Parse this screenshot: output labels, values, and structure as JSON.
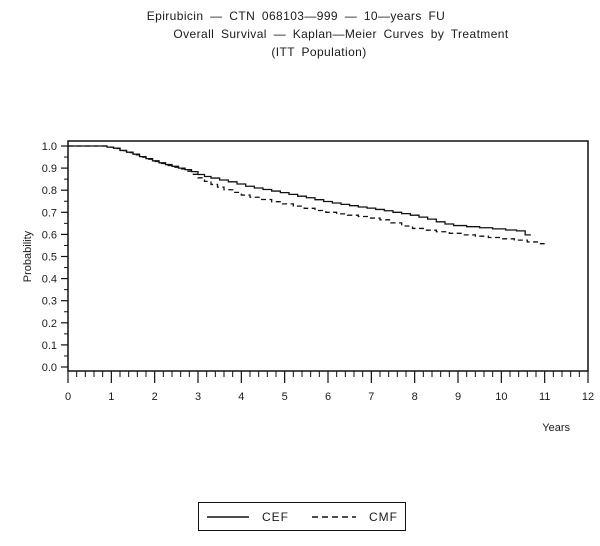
{
  "titles": {
    "line1": "Epirubicin — CTN 068103—999 — 10—years FU",
    "line2": "Overall Survival — Kaplan—Meier Curves by Treatment",
    "line3": "(ITT Population)"
  },
  "colors": {
    "background": "#ffffff",
    "line": "#111111",
    "text": "#1a1a1a"
  },
  "chart_data": {
    "type": "line",
    "subtype": "kaplan-meier-step",
    "title": "Overall Survival — Kaplan—Meier Curves by Treatment (ITT Population)",
    "xlabel": "Years",
    "ylabel": "Probability",
    "xlim": [
      0,
      12
    ],
    "ylim": [
      0.0,
      1.0
    ],
    "x_ticks": [
      0,
      1,
      2,
      3,
      4,
      5,
      6,
      7,
      8,
      9,
      10,
      11,
      12
    ],
    "y_ticks": [
      1.0,
      0.9,
      0.8,
      0.7,
      0.6,
      0.5,
      0.4,
      0.3,
      0.2,
      0.1,
      0.0
    ],
    "x_minor_interval": 0.2,
    "y_minor_interval": 0.05,
    "grid": false,
    "frame": true,
    "legend_position": "bottom-center",
    "series": [
      {
        "name": "CEF",
        "line_style": "solid",
        "color": "#111111",
        "end_x": 10.68,
        "points": [
          [
            0,
            1.0
          ],
          [
            0.9,
            0.995
          ],
          [
            1.05,
            0.99
          ],
          [
            1.2,
            0.98
          ],
          [
            1.35,
            0.972
          ],
          [
            1.5,
            0.963
          ],
          [
            1.65,
            0.952
          ],
          [
            1.8,
            0.943
          ],
          [
            1.95,
            0.933
          ],
          [
            2.1,
            0.924
          ],
          [
            2.25,
            0.916
          ],
          [
            2.4,
            0.908
          ],
          [
            2.55,
            0.9
          ],
          [
            2.7,
            0.893
          ],
          [
            2.85,
            0.884
          ],
          [
            3.0,
            0.871
          ],
          [
            3.15,
            0.862
          ],
          [
            3.3,
            0.855
          ],
          [
            3.5,
            0.846
          ],
          [
            3.7,
            0.838
          ],
          [
            3.9,
            0.828
          ],
          [
            4.1,
            0.818
          ],
          [
            4.3,
            0.81
          ],
          [
            4.5,
            0.803
          ],
          [
            4.7,
            0.796
          ],
          [
            4.9,
            0.789
          ],
          [
            5.1,
            0.781
          ],
          [
            5.3,
            0.773
          ],
          [
            5.5,
            0.766
          ],
          [
            5.7,
            0.757
          ],
          [
            5.9,
            0.749
          ],
          [
            6.1,
            0.742
          ],
          [
            6.3,
            0.736
          ],
          [
            6.5,
            0.73
          ],
          [
            6.7,
            0.724
          ],
          [
            6.9,
            0.719
          ],
          [
            7.1,
            0.713
          ],
          [
            7.3,
            0.707
          ],
          [
            7.5,
            0.7
          ],
          [
            7.7,
            0.694
          ],
          [
            7.9,
            0.687
          ],
          [
            8.1,
            0.678
          ],
          [
            8.3,
            0.669
          ],
          [
            8.5,
            0.657
          ],
          [
            8.7,
            0.647
          ],
          [
            8.9,
            0.64
          ],
          [
            9.2,
            0.635
          ],
          [
            9.5,
            0.63
          ],
          [
            9.8,
            0.625
          ],
          [
            10.1,
            0.62
          ],
          [
            10.35,
            0.616
          ],
          [
            10.55,
            0.598
          ]
        ]
      },
      {
        "name": "CMF",
        "line_style": "dashed",
        "color": "#111111",
        "end_x": 11.0,
        "points": [
          [
            0,
            1.0
          ],
          [
            0.9,
            0.995
          ],
          [
            1.05,
            0.989
          ],
          [
            1.2,
            0.979
          ],
          [
            1.35,
            0.97
          ],
          [
            1.5,
            0.96
          ],
          [
            1.65,
            0.95
          ],
          [
            1.8,
            0.94
          ],
          [
            1.95,
            0.93
          ],
          [
            2.1,
            0.921
          ],
          [
            2.25,
            0.912
          ],
          [
            2.4,
            0.904
          ],
          [
            2.55,
            0.896
          ],
          [
            2.7,
            0.886
          ],
          [
            2.85,
            0.872
          ],
          [
            3.0,
            0.856
          ],
          [
            3.15,
            0.84
          ],
          [
            3.3,
            0.826
          ],
          [
            3.45,
            0.814
          ],
          [
            3.6,
            0.802
          ],
          [
            3.8,
            0.79
          ],
          [
            4.0,
            0.778
          ],
          [
            4.2,
            0.768
          ],
          [
            4.45,
            0.758
          ],
          [
            4.7,
            0.748
          ],
          [
            4.95,
            0.738
          ],
          [
            5.2,
            0.728
          ],
          [
            5.45,
            0.718
          ],
          [
            5.7,
            0.708
          ],
          [
            5.95,
            0.7
          ],
          [
            6.2,
            0.693
          ],
          [
            6.45,
            0.687
          ],
          [
            6.7,
            0.681
          ],
          [
            6.95,
            0.674
          ],
          [
            7.2,
            0.666
          ],
          [
            7.45,
            0.652
          ],
          [
            7.7,
            0.638
          ],
          [
            7.95,
            0.627
          ],
          [
            8.2,
            0.619
          ],
          [
            8.5,
            0.612
          ],
          [
            8.8,
            0.605
          ],
          [
            9.1,
            0.598
          ],
          [
            9.4,
            0.592
          ],
          [
            9.7,
            0.586
          ],
          [
            10.0,
            0.58
          ],
          [
            10.3,
            0.574
          ],
          [
            10.6,
            0.566
          ],
          [
            10.85,
            0.558
          ]
        ]
      }
    ]
  },
  "legend": {
    "items": [
      {
        "label": "CEF",
        "style": "solid"
      },
      {
        "label": "CMF",
        "style": "dashed"
      }
    ]
  }
}
